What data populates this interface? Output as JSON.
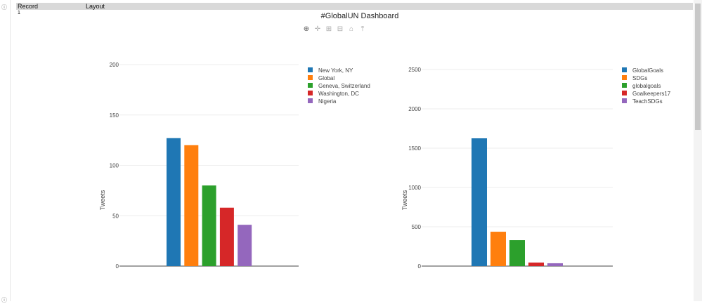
{
  "header": {
    "col1": "Record",
    "col2": "Layout",
    "record": "1"
  },
  "title": "#GlobalUN Dashboard",
  "modebar": [
    "zoom-icon",
    "pan-icon",
    "zoom-in-icon",
    "zoom-out-icon",
    "home-icon",
    "spike-icon"
  ],
  "chart_data": [
    {
      "type": "bar",
      "ylabel": "Tweets",
      "ylim": [
        0,
        200
      ],
      "yticks": [
        "0",
        "50",
        "100",
        "150",
        "200"
      ],
      "yvals": [
        0,
        50,
        100,
        150,
        200
      ],
      "legend": "top-right",
      "series": [
        {
          "name": "New York, NY",
          "value": 127,
          "color": "#1f77b4"
        },
        {
          "name": "Global",
          "value": 120,
          "color": "#ff7f0e"
        },
        {
          "name": "Geneva, Switzerland",
          "value": 80,
          "color": "#2ca02c"
        },
        {
          "name": "Washington, DC",
          "value": 58,
          "color": "#d62728"
        },
        {
          "name": "Nigeria",
          "value": 41,
          "color": "#9467bd"
        }
      ]
    },
    {
      "type": "bar",
      "ylabel": "Tweets",
      "ylim": [
        0,
        2500
      ],
      "yticks": [
        "0",
        "500",
        "1000",
        "1500",
        "2000",
        "2500"
      ],
      "yvals": [
        0,
        500,
        1000,
        1500,
        2000,
        2500
      ],
      "legend": "top-right",
      "series": [
        {
          "name": "GlobalGoals",
          "value": 1625,
          "color": "#1f77b4"
        },
        {
          "name": "SDGs",
          "value": 437,
          "color": "#ff7f0e"
        },
        {
          "name": "globalgoals",
          "value": 330,
          "color": "#2ca02c"
        },
        {
          "name": "Goalkeepers17",
          "value": 45,
          "color": "#d62728"
        },
        {
          "name": "TeachSDGs",
          "value": 36,
          "color": "#9467bd"
        }
      ]
    }
  ]
}
